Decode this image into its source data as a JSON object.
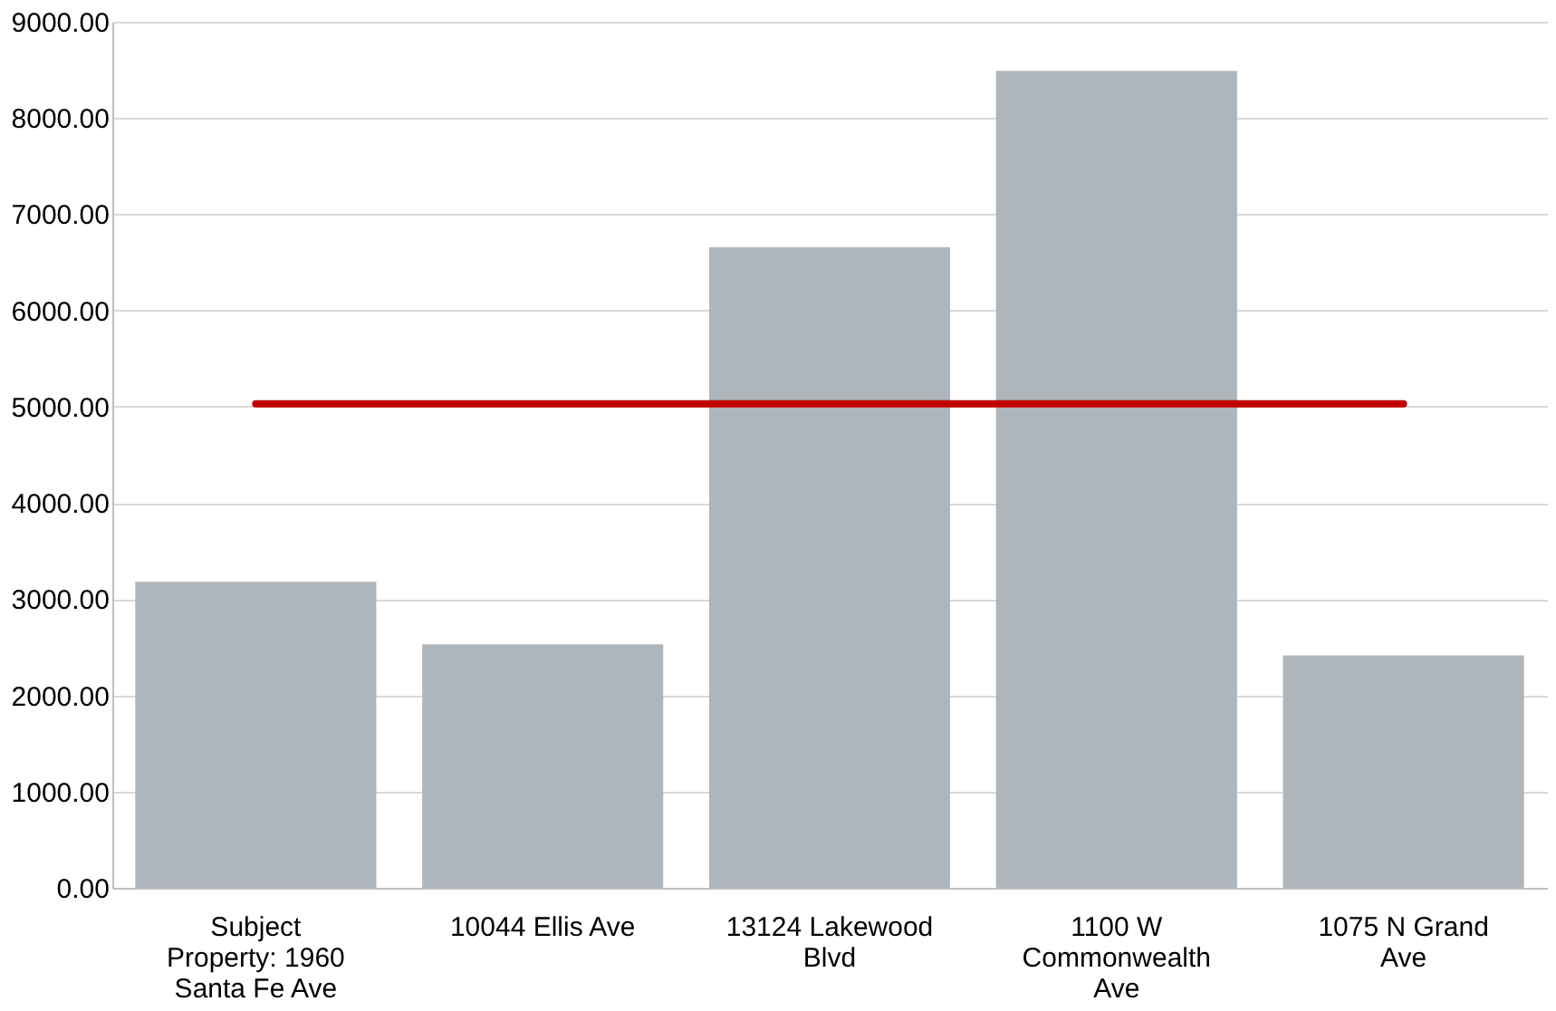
{
  "chart_data": {
    "type": "bar",
    "categories": [
      "Subject Property: 1960 Santa Fe Ave",
      "10044 Ellis Ave",
      "13124 Lakewood Blvd",
      "1100 W Commonwealth Ave",
      "1075 N Grand Ave"
    ],
    "series": [
      {
        "color": "#aeb5bb",
        "values": [
          3180,
          2530,
          6655,
          8490,
          2415
        ]
      },
      {
        "type": "line",
        "color": "#c00000",
        "values": [
          5030,
          5030,
          5030,
          5030,
          5030
        ]
      }
    ],
    "ylim": [
      0,
      9000
    ],
    "yticks": [
      {
        "value": 0,
        "label": "0.00"
      },
      {
        "value": 1000,
        "label": "1000.00"
      },
      {
        "value": 2000,
        "label": "2000.00"
      },
      {
        "value": 3000,
        "label": "3000.00"
      },
      {
        "value": 4000,
        "label": "4000.00"
      },
      {
        "value": 5000,
        "label": "5000.00"
      },
      {
        "value": 6000,
        "label": "6000.00"
      },
      {
        "value": 7000,
        "label": "7000.00"
      },
      {
        "value": 8000,
        "label": "8000.00"
      },
      {
        "value": 9000,
        "label": "9000.00"
      }
    ],
    "grid": "y",
    "legend": false
  }
}
